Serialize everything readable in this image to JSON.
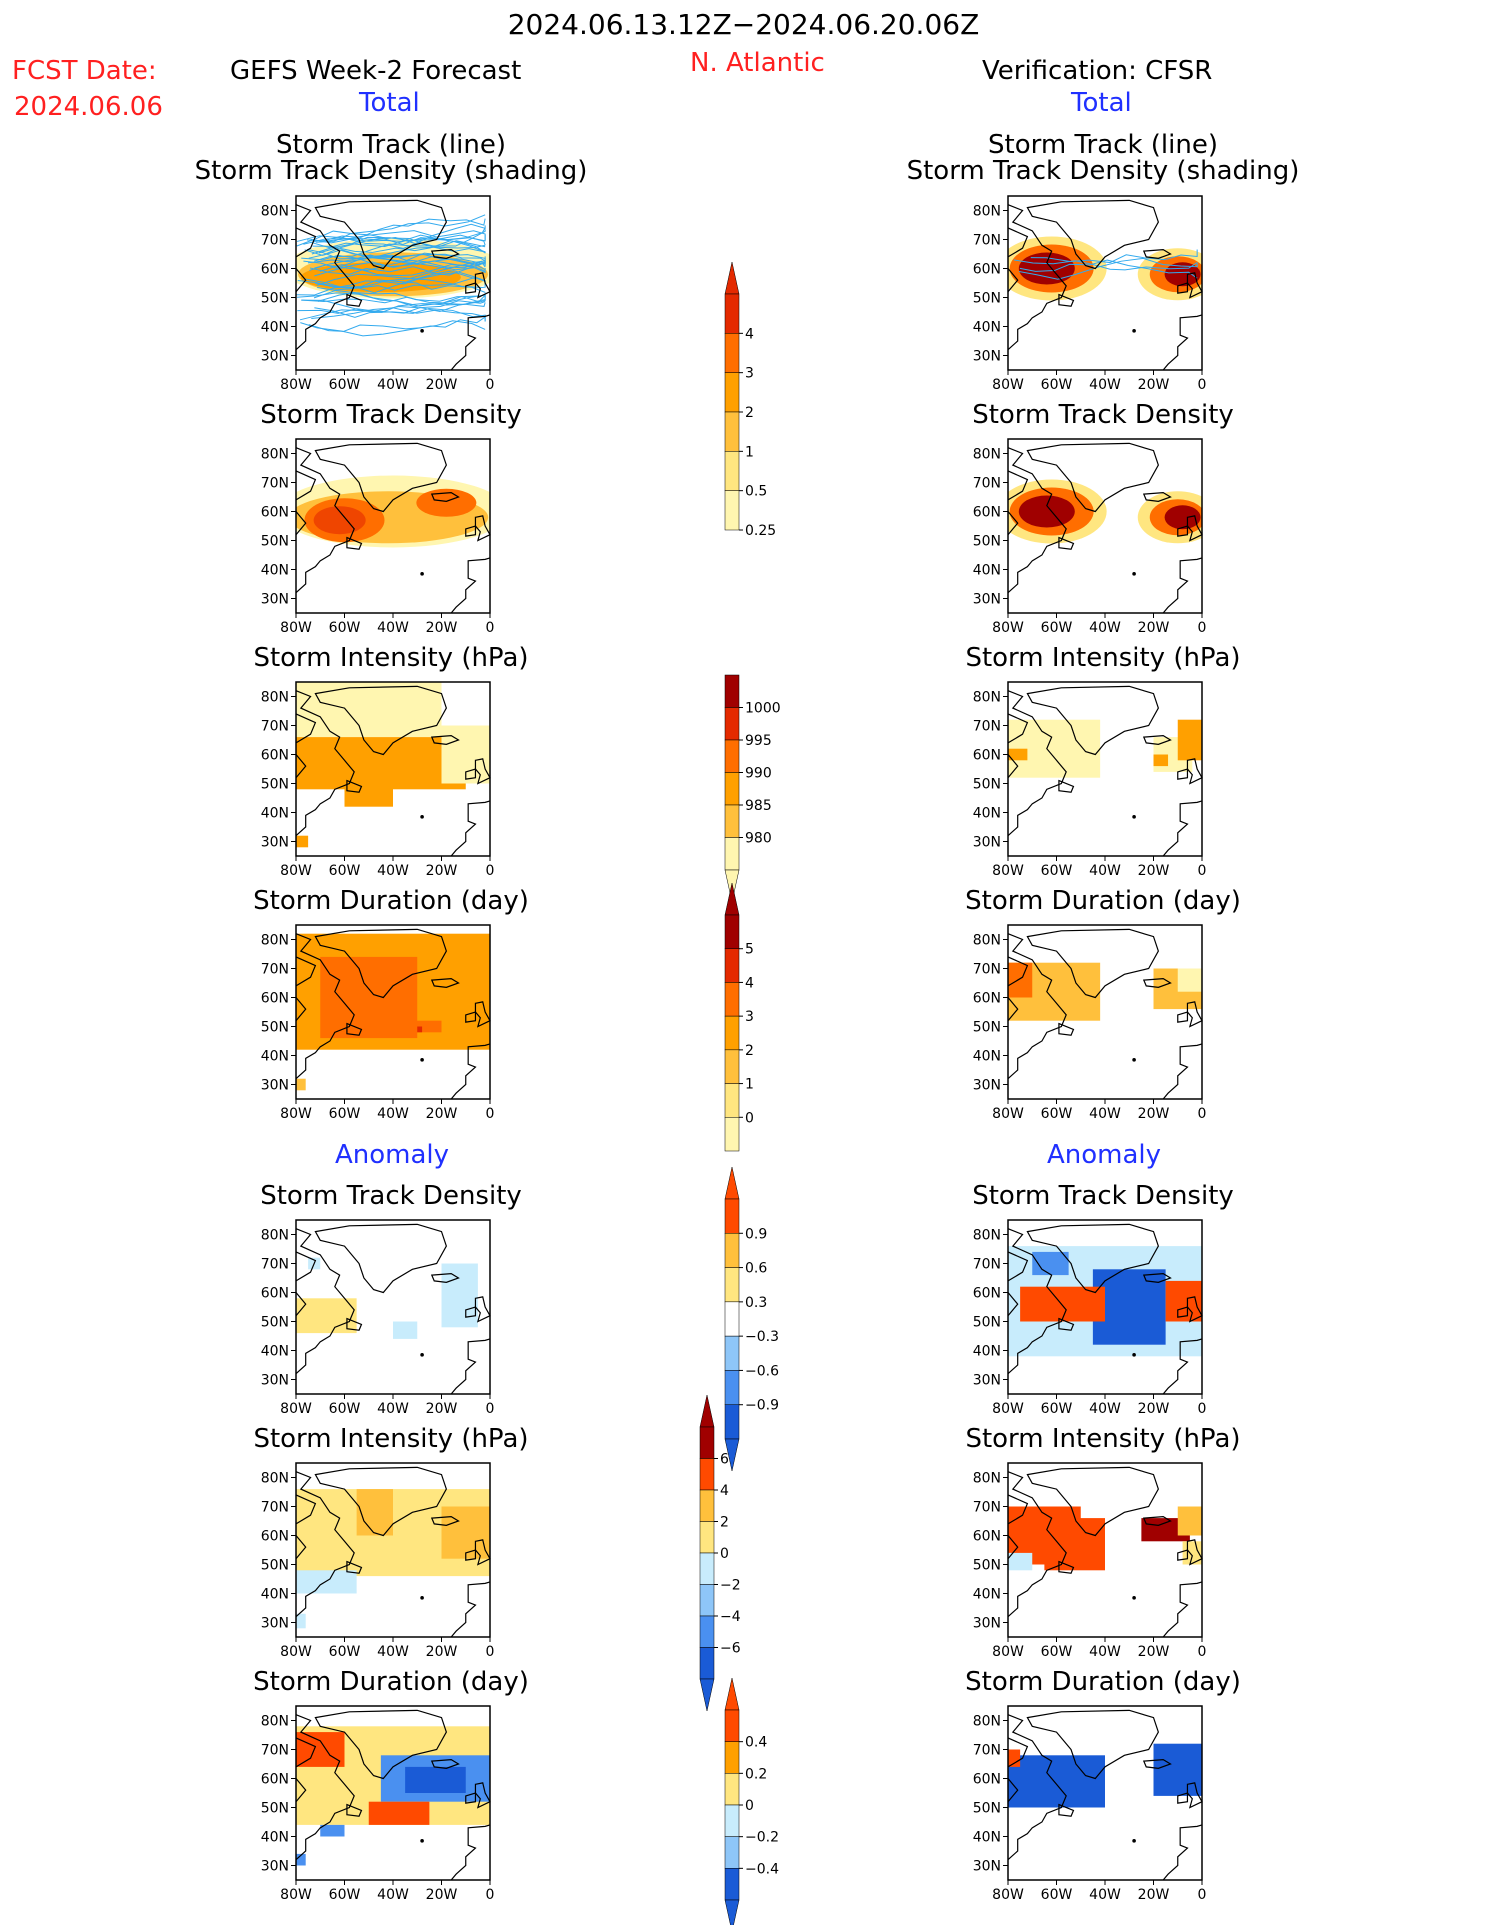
{
  "header": {
    "period": "2024.06.13.12Z−2024.06.20.06Z",
    "fcst_label": "FCST Date:",
    "fcst_date": "2024.06.06",
    "left_title": "GEFS Week-2 Forecast",
    "region": "N. Atlantic",
    "right_title": "Verification: CFSR",
    "total_left": "Total",
    "total_right": "Total",
    "anomaly_left": "Anomaly",
    "anomaly_right": "Anomaly"
  },
  "colors": {
    "text_red": "#ff2020",
    "text_blue": "#2030ff",
    "track_line": "#33aaee",
    "density_scale": [
      "#fff6b0",
      "#ffe680",
      "#ffc03c",
      "#ffa000",
      "#ff6e00",
      "#e42a00",
      "#a00000"
    ],
    "intensity_scale": [
      "#fff6b0",
      "#ffc03c",
      "#ffa000",
      "#ff6e00",
      "#e42a00",
      "#a00000"
    ],
    "anomaly_scale_neg": [
      "#1a5bd6",
      "#4a90f0",
      "#8ec6f8",
      "#c8ecfc"
    ],
    "anomaly_scale_pos": [
      "#ffe680",
      "#ffc03c",
      "#ffa000",
      "#ff4a00",
      "#a00000"
    ]
  },
  "panel_axes": {
    "lat_ticks": [
      "80N",
      "70N",
      "60N",
      "50N",
      "40N",
      "30N"
    ],
    "lon_ticks": [
      "80W",
      "60W",
      "40W",
      "20W",
      "0"
    ]
  },
  "panels": {
    "p1_title_a": "Storm Track (line)",
    "p1_title_b": "Storm Track Density (shading)",
    "density": "Storm Track Density",
    "intensity": "Storm Intensity (hPa)",
    "duration": "Storm Duration (day)"
  },
  "colorbars": {
    "density": [
      "4",
      "3",
      "2",
      "1",
      "0.5",
      "0.25"
    ],
    "intensity": [
      "1000",
      "995",
      "990",
      "985",
      "980"
    ],
    "duration": [
      "5",
      "4",
      "3",
      "2",
      "1",
      "0"
    ],
    "density_anom": [
      "0.9",
      "0.6",
      "0.3",
      "−0.3",
      "−0.6",
      "−0.9"
    ],
    "intensity_anom": [
      "6",
      "4",
      "2",
      "0",
      "−2",
      "−4",
      "−6"
    ],
    "duration_anom": [
      "0.4",
      "0.2",
      "0",
      "−0.2",
      "−0.4"
    ]
  },
  "chart_data": [
    {
      "type": "heatmap",
      "title": "Storm Track (line) / Storm Track Density (shading)",
      "model": "GEFS Week-2 Forecast",
      "xlabel": "",
      "ylabel": "",
      "xlim": [
        -80,
        0
      ],
      "ylim": [
        25,
        85
      ],
      "value_peak": 3,
      "note_values": "density 1–3 between 45N–70N across the basin"
    },
    {
      "type": "heatmap",
      "title": "Storm Track Density",
      "model": "GEFS Week-2 Forecast",
      "xlim": [
        -80,
        0
      ],
      "ylim": [
        25,
        85
      ],
      "value_peak": 3
    },
    {
      "type": "heatmap",
      "title": "Storm Intensity (hPa)",
      "model": "GEFS Week-2 Forecast",
      "xlim": [
        -80,
        0
      ],
      "ylim": [
        25,
        85
      ],
      "value_range": [
        990,
        1000
      ]
    },
    {
      "type": "heatmap",
      "title": "Storm Duration (day)",
      "model": "GEFS Week-2 Forecast",
      "xlim": [
        -80,
        0
      ],
      "ylim": [
        25,
        85
      ],
      "value_range": [
        2,
        4
      ]
    },
    {
      "type": "heatmap",
      "title": "Storm Track Density (Anomaly)",
      "model": "GEFS Week-2 Forecast",
      "xlim": [
        -80,
        0
      ],
      "ylim": [
        25,
        85
      ],
      "value_range": [
        -0.3,
        0.6
      ]
    },
    {
      "type": "heatmap",
      "title": "Storm Intensity (hPa) (Anomaly)",
      "model": "GEFS Week-2 Forecast",
      "xlim": [
        -80,
        0
      ],
      "ylim": [
        25,
        85
      ],
      "value_range": [
        -2,
        4
      ]
    },
    {
      "type": "heatmap",
      "title": "Storm Duration (day) (Anomaly)",
      "model": "GEFS Week-2 Forecast",
      "xlim": [
        -80,
        0
      ],
      "ylim": [
        25,
        85
      ],
      "value_range": [
        -0.4,
        0.4
      ]
    },
    {
      "type": "heatmap",
      "title": "Storm Track (line) / Storm Track Density (shading)",
      "model": "Verification: CFSR",
      "xlim": [
        -80,
        0
      ],
      "ylim": [
        25,
        85
      ],
      "value_peak": 4
    },
    {
      "type": "heatmap",
      "title": "Storm Track Density",
      "model": "Verification: CFSR",
      "xlim": [
        -80,
        0
      ],
      "ylim": [
        25,
        85
      ],
      "value_peak": 4
    },
    {
      "type": "heatmap",
      "title": "Storm Intensity (hPa)",
      "model": "Verification: CFSR",
      "xlim": [
        -80,
        0
      ],
      "ylim": [
        25,
        85
      ],
      "value_range": [
        990,
        1000
      ]
    },
    {
      "type": "heatmap",
      "title": "Storm Duration (day)",
      "model": "Verification: CFSR",
      "xlim": [
        -80,
        0
      ],
      "ylim": [
        25,
        85
      ],
      "value_range": [
        1,
        3
      ]
    },
    {
      "type": "heatmap",
      "title": "Storm Track Density (Anomaly)",
      "model": "Verification: CFSR",
      "xlim": [
        -80,
        0
      ],
      "ylim": [
        25,
        85
      ],
      "value_range": [
        -0.9,
        0.9
      ]
    },
    {
      "type": "heatmap",
      "title": "Storm Intensity (hPa) (Anomaly)",
      "model": "Verification: CFSR",
      "xlim": [
        -80,
        0
      ],
      "ylim": [
        25,
        85
      ],
      "value_range": [
        -2,
        6
      ]
    },
    {
      "type": "heatmap",
      "title": "Storm Duration (day) (Anomaly)",
      "model": "Verification: CFSR",
      "xlim": [
        -80,
        0
      ],
      "ylim": [
        25,
        85
      ],
      "value_range": [
        -0.4,
        0.4
      ]
    }
  ]
}
